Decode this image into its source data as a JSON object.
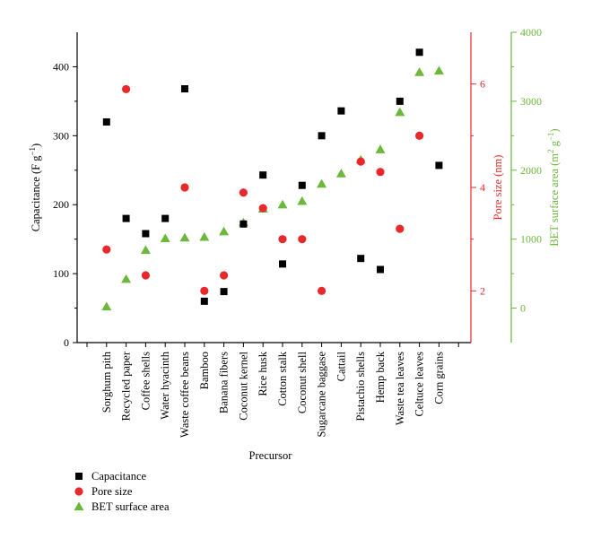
{
  "chart_data": {
    "type": "scatter",
    "xlabel": "Precursor",
    "categories": [
      "Sorghum pith",
      "Recycled paper",
      "Coffee shells",
      "Water hyacinth",
      "Waste coffee beans",
      "Bamboo",
      "Banana fibers",
      "Coconut kernel",
      "Rice husk",
      "Cotton stalk",
      "Coconut shell",
      "Sugarcane baggase",
      "Cattail",
      "Pistachio shells",
      "Hemp back",
      "Waste tea leaves",
      "Celtuce leaves",
      "Corn grains"
    ],
    "axes": {
      "left": {
        "label": "Capacitance (F g−1)",
        "label_main": "Capacitance (F g",
        "label_sup": "−1",
        "label_end": ")",
        "ylim": [
          0,
          450
        ],
        "ticks": [
          0,
          100,
          200,
          300,
          400
        ],
        "color": "#000000"
      },
      "right1": {
        "label": "Pore size (nm)",
        "ylim": [
          1,
          7
        ],
        "ticks": [
          2,
          4,
          6
        ],
        "color": "#e8282a"
      },
      "right2": {
        "label": "BET surface area (m2 g−1)",
        "label_main": "BET surface area (m",
        "label_sup1": "2",
        "label_mid": " g",
        "label_sup2": "−1",
        "label_end": ")",
        "ylim": [
          -500,
          4000
        ],
        "ticks": [
          0,
          1000,
          2000,
          3000,
          4000
        ],
        "color": "#6cb83a"
      }
    },
    "series": [
      {
        "name": "Capacitance",
        "axis": "left",
        "marker": "square",
        "color": "#000000",
        "values": [
          320,
          180,
          158,
          180,
          368,
          60,
          74,
          172,
          243,
          114,
          228,
          300,
          336,
          122,
          106,
          350,
          421,
          257
        ]
      },
      {
        "name": "Pore size",
        "axis": "right1",
        "marker": "circle",
        "color": "#e8282a",
        "values": [
          2.8,
          5.9,
          2.3,
          null,
          4.0,
          2.0,
          2.3,
          3.9,
          3.6,
          3.0,
          3.0,
          2.0,
          null,
          4.5,
          4.3,
          3.2,
          5.0,
          null
        ]
      },
      {
        "name": "BET surface area",
        "axis": "right2",
        "marker": "triangle",
        "color": "#6cb83a",
        "values": [
          20,
          420,
          840,
          1010,
          1020,
          1030,
          1110,
          1240,
          1440,
          1500,
          1550,
          1800,
          1950,
          2150,
          2300,
          2840,
          3420,
          3440
        ]
      }
    ],
    "legend": {
      "placement": "bottom-left"
    }
  }
}
